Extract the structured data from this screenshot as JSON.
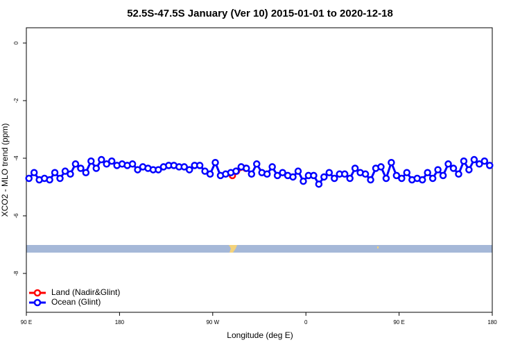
{
  "chart_data": {
    "type": "line",
    "title": "52.5S-47.5S January (Ver 10)   2015-01-01 to 2020-12-18",
    "x_label": "Longitude (deg E)",
    "y_label": "XCO2 - MLO trend (ppm)",
    "xlim": [
      90,
      540
    ],
    "xticks": [
      {
        "value": 90,
        "label": "90 E"
      },
      180,
      {
        "value": 270,
        "label": "90 W"
      },
      {
        "value": 360,
        "label": "0"
      },
      {
        "value": 450,
        "label": "90 E"
      },
      {
        "value": 540,
        "label": "180"
      }
    ],
    "ylim": [
      -9.35,
      0.53
    ],
    "yticks": [
      0,
      -2,
      -4,
      -6,
      -8
    ],
    "legend": "bottom-left",
    "series": [
      {
        "name": "Land (Nadir&Glint)",
        "color": "#ff0000",
        "x": [
          289,
          293,
          302
        ],
        "values": [
          -4.6,
          -4.45,
          -4.35
        ]
      },
      {
        "name": "Ocean (Glint)",
        "color": "#0000ff",
        "x": [
          92.5,
          97.5,
          102.5,
          107.5,
          112.5,
          117.5,
          122.5,
          127.5,
          132.5,
          137.5,
          142.5,
          147.5,
          152.5,
          157.5,
          162.5,
          167.5,
          172.5,
          177.5,
          182.5,
          187.5,
          192.5,
          197.5,
          202.5,
          207.5,
          212.5,
          217.5,
          222.5,
          227.5,
          232.5,
          237.5,
          242.5,
          247.5,
          252.5,
          257.5,
          262.5,
          267.5,
          272.5,
          277.5,
          282.5,
          287.5,
          292.5,
          297.5,
          302.5,
          307.5,
          312.5,
          317.5,
          322.5,
          327.5,
          332.5,
          337.5,
          342.5,
          347.5,
          352.5,
          357.5,
          362.5,
          367.5,
          372.5,
          377.5,
          382.5,
          387.5,
          392.5,
          397.5,
          402.5,
          407.5,
          412.5,
          417.5,
          422.5,
          427.5,
          432.5,
          437.5,
          442.5,
          447.5,
          452.5,
          457.5,
          462.5,
          467.5,
          472.5,
          477.5,
          482.5,
          487.5,
          492.5,
          497.5,
          502.5,
          507.5,
          512.5,
          517.5,
          522.5,
          527.5,
          532.5,
          537.5
        ],
        "values": [
          -4.7,
          -4.5,
          -4.75,
          -4.7,
          -4.75,
          -4.5,
          -4.7,
          -4.45,
          -4.55,
          -4.2,
          -4.35,
          -4.5,
          -4.1,
          -4.35,
          -4.05,
          -4.2,
          -4.1,
          -4.25,
          -4.2,
          -4.25,
          -4.2,
          -4.4,
          -4.3,
          -4.35,
          -4.4,
          -4.4,
          -4.3,
          -4.25,
          -4.25,
          -4.3,
          -4.3,
          -4.4,
          -4.25,
          -4.25,
          -4.45,
          -4.55,
          -4.15,
          -4.6,
          -4.55,
          -4.5,
          -4.45,
          -4.3,
          -4.35,
          -4.55,
          -4.2,
          -4.5,
          -4.55,
          -4.3,
          -4.6,
          -4.5,
          -4.6,
          -4.65,
          -4.45,
          -4.8,
          -4.6,
          -4.6,
          -4.9,
          -4.65,
          -4.5,
          -4.7,
          -4.55,
          -4.55,
          -4.7,
          -4.35,
          -4.5,
          -4.55,
          -4.75,
          -4.35,
          -4.3,
          -4.7,
          -4.15,
          -4.6,
          -4.7,
          -4.5,
          -4.75,
          -4.7,
          -4.75,
          -4.5,
          -4.7,
          -4.4,
          -4.6,
          -4.2,
          -4.35,
          -4.55,
          -4.1,
          -4.4,
          -4.05,
          -4.2,
          -4.1,
          -4.25
        ]
      }
    ]
  }
}
